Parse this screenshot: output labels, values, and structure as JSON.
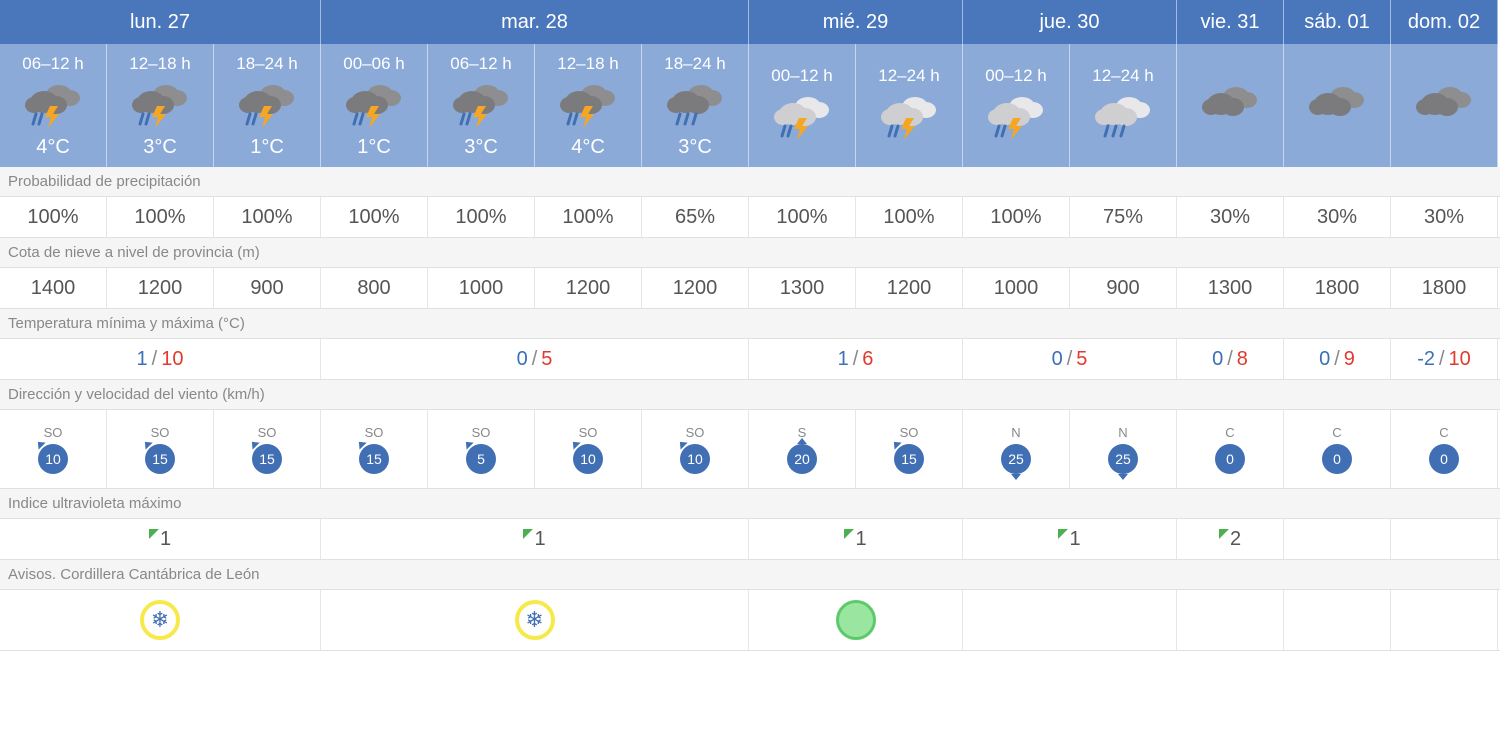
{
  "colors": {
    "day_header_bg": "#4a77bc",
    "period_header_bg": "#8baad7",
    "header_text": "#ffffff",
    "body_text": "#555555",
    "label_text": "#888888",
    "label_bg": "#f5f5f5",
    "border": "#e0e0e0",
    "wind_circle": "#416fb4",
    "temp_min": "#3b6fb6",
    "temp_max": "#e23a2e",
    "uv_triangle": "#4caf50",
    "warn_ring": "#f7e94a",
    "warn_green_fill": "#9ae6a0",
    "warn_green_border": "#5cc96a"
  },
  "days": [
    {
      "label": "lun. 27",
      "span": 3
    },
    {
      "label": "mar. 28",
      "span": 4
    },
    {
      "label": "mié. 29",
      "span": 2
    },
    {
      "label": "jue. 30",
      "span": 2
    },
    {
      "label": "vie. 31",
      "span": 1
    },
    {
      "label": "sáb. 01",
      "span": 1
    },
    {
      "label": "dom. 02",
      "span": 1
    }
  ],
  "periods": [
    {
      "range": "06–12 h",
      "icon": "storm-rain",
      "temp": "4°C"
    },
    {
      "range": "12–18 h",
      "icon": "storm-rain",
      "temp": "3°C"
    },
    {
      "range": "18–24 h",
      "icon": "storm-rain",
      "temp": "1°C"
    },
    {
      "range": "00–06 h",
      "icon": "storm-rain",
      "temp": "1°C"
    },
    {
      "range": "06–12 h",
      "icon": "storm-rain",
      "temp": "3°C"
    },
    {
      "range": "12–18 h",
      "icon": "storm-rain",
      "temp": "4°C"
    },
    {
      "range": "18–24 h",
      "icon": "cloud-rain",
      "temp": "3°C"
    },
    {
      "range": "00–12 h",
      "icon": "storm-rain-light",
      "temp": ""
    },
    {
      "range": "12–24 h",
      "icon": "storm-rain-light",
      "temp": ""
    },
    {
      "range": "00–12 h",
      "icon": "storm-rain-light",
      "temp": ""
    },
    {
      "range": "12–24 h",
      "icon": "cloud-rain-light",
      "temp": ""
    },
    {
      "range": "",
      "icon": "cloud",
      "temp": ""
    },
    {
      "range": "",
      "icon": "cloud",
      "temp": ""
    },
    {
      "range": "",
      "icon": "cloud",
      "temp": ""
    }
  ],
  "sections": {
    "precipitation": {
      "label": "Probabilidad de precipitación",
      "values": [
        "100%",
        "100%",
        "100%",
        "100%",
        "100%",
        "100%",
        "65%",
        "100%",
        "100%",
        "100%",
        "75%",
        "30%",
        "30%",
        "30%"
      ]
    },
    "snow_level": {
      "label": "Cota de nieve a nivel de provincia (m)",
      "values": [
        "1400",
        "1200",
        "900",
        "800",
        "1000",
        "1200",
        "1200",
        "1300",
        "1200",
        "1000",
        "900",
        "1300",
        "1800",
        "1800"
      ]
    },
    "temp_minmax": {
      "label": "Temperatura mínima y máxima (°C)",
      "by_day": [
        {
          "min": "1",
          "max": "10"
        },
        {
          "min": "0",
          "max": "5"
        },
        {
          "min": "1",
          "max": "6"
        },
        {
          "min": "0",
          "max": "5"
        },
        {
          "min": "0",
          "max": "8"
        },
        {
          "min": "0",
          "max": "9"
        },
        {
          "min": "-2",
          "max": "10"
        }
      ]
    },
    "wind": {
      "label": "Dirección y velocidad del viento (km/h)",
      "values": [
        {
          "dir": "SO",
          "speed": "10",
          "arrow": "tl"
        },
        {
          "dir": "SO",
          "speed": "15",
          "arrow": "tl"
        },
        {
          "dir": "SO",
          "speed": "15",
          "arrow": "tl"
        },
        {
          "dir": "SO",
          "speed": "15",
          "arrow": "tl"
        },
        {
          "dir": "SO",
          "speed": "5",
          "arrow": "tl"
        },
        {
          "dir": "SO",
          "speed": "10",
          "arrow": "tl"
        },
        {
          "dir": "SO",
          "speed": "10",
          "arrow": "tl"
        },
        {
          "dir": "S",
          "speed": "20",
          "arrow": "top"
        },
        {
          "dir": "SO",
          "speed": "15",
          "arrow": "tl"
        },
        {
          "dir": "N",
          "speed": "25",
          "arrow": "bottom"
        },
        {
          "dir": "N",
          "speed": "25",
          "arrow": "bottom"
        },
        {
          "dir": "C",
          "speed": "0",
          "arrow": ""
        },
        {
          "dir": "C",
          "speed": "0",
          "arrow": ""
        },
        {
          "dir": "C",
          "speed": "0",
          "arrow": ""
        }
      ]
    },
    "uv": {
      "label": "Indice ultravioleta máximo",
      "by_day": [
        "1",
        "1",
        "1",
        "1",
        "2",
        "",
        ""
      ]
    },
    "warnings": {
      "label": "Avisos. Cordillera Cantábrica de León",
      "by_day": [
        "snow",
        "snow",
        "green",
        "",
        "",
        "",
        ""
      ]
    }
  }
}
